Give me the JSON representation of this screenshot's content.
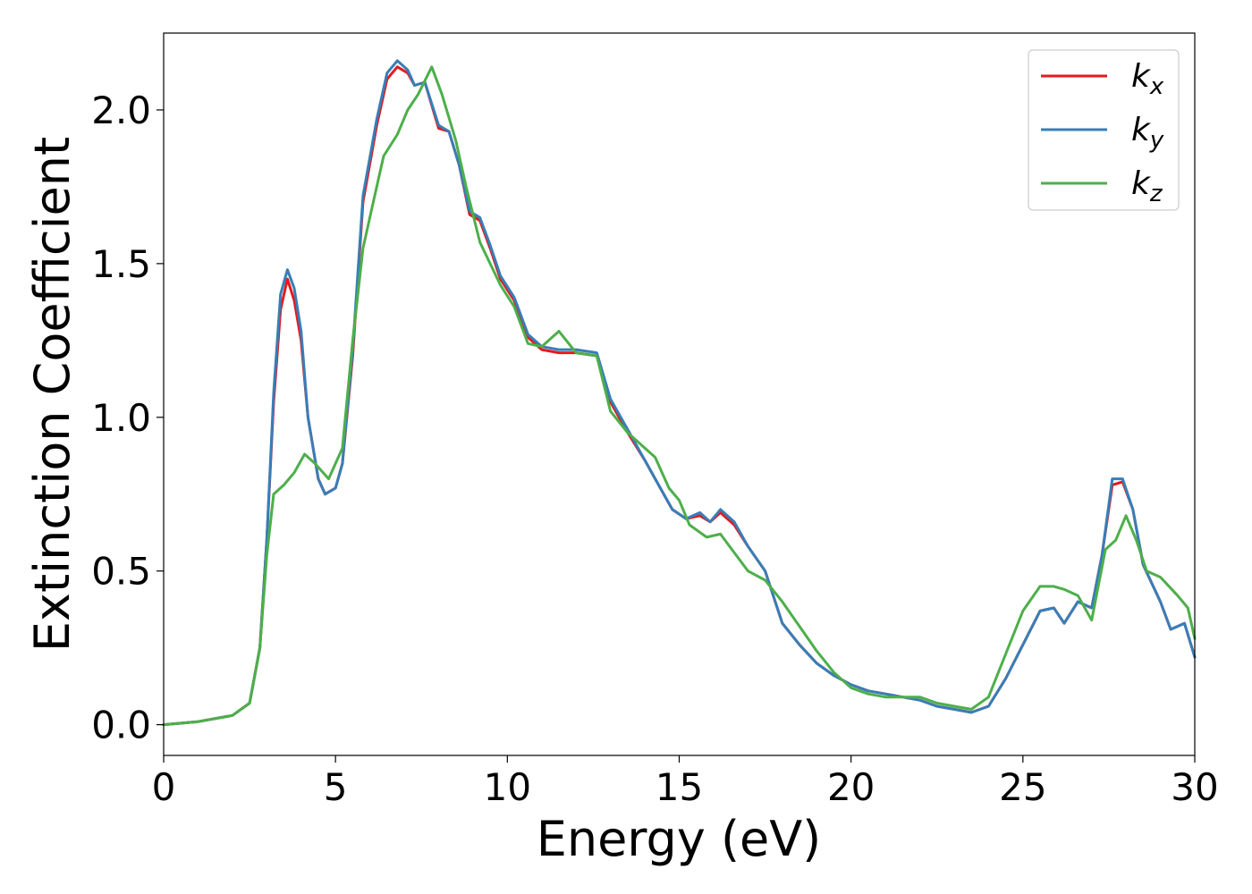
{
  "chart_data": {
    "type": "line",
    "title": "",
    "xlabel": "Energy (eV)",
    "ylabel": "Extinction Coefficient",
    "xlim": [
      0,
      30
    ],
    "ylim": [
      -0.1,
      2.25
    ],
    "xticks": [
      0,
      5,
      10,
      15,
      20,
      25,
      30
    ],
    "xtick_labels": [
      "0",
      "5",
      "10",
      "15",
      "20",
      "25",
      "30"
    ],
    "yticks": [
      0.0,
      0.5,
      1.0,
      1.5,
      2.0
    ],
    "ytick_labels": [
      "0.0",
      "0.5",
      "1.0",
      "1.5",
      "2.0"
    ],
    "grid": false,
    "legend": {
      "position": "top-right"
    },
    "series": [
      {
        "name": "k",
        "sub": "x",
        "color": "#e41a1c",
        "points": [
          [
            0,
            0
          ],
          [
            1,
            0.01
          ],
          [
            2,
            0.03
          ],
          [
            2.5,
            0.07
          ],
          [
            2.8,
            0.25
          ],
          [
            3.0,
            0.6
          ],
          [
            3.2,
            1.05
          ],
          [
            3.4,
            1.35
          ],
          [
            3.6,
            1.45
          ],
          [
            3.8,
            1.38
          ],
          [
            4.0,
            1.25
          ],
          [
            4.2,
            1.0
          ],
          [
            4.5,
            0.8
          ],
          [
            4.7,
            0.75
          ],
          [
            5.0,
            0.77
          ],
          [
            5.2,
            0.85
          ],
          [
            5.5,
            1.2
          ],
          [
            5.8,
            1.7
          ],
          [
            6.2,
            1.95
          ],
          [
            6.5,
            2.1
          ],
          [
            6.8,
            2.14
          ],
          [
            7.1,
            2.12
          ],
          [
            7.3,
            2.08
          ],
          [
            7.6,
            2.09
          ],
          [
            8.0,
            1.94
          ],
          [
            8.3,
            1.93
          ],
          [
            8.6,
            1.82
          ],
          [
            8.9,
            1.66
          ],
          [
            9.2,
            1.64
          ],
          [
            9.5,
            1.55
          ],
          [
            9.8,
            1.45
          ],
          [
            10.2,
            1.38
          ],
          [
            10.6,
            1.26
          ],
          [
            11.0,
            1.22
          ],
          [
            11.5,
            1.21
          ],
          [
            12.0,
            1.21
          ],
          [
            12.6,
            1.2
          ],
          [
            13.0,
            1.05
          ],
          [
            13.5,
            0.95
          ],
          [
            14.0,
            0.86
          ],
          [
            14.4,
            0.78
          ],
          [
            14.8,
            0.7
          ],
          [
            15.2,
            0.67
          ],
          [
            15.6,
            0.68
          ],
          [
            15.9,
            0.66
          ],
          [
            16.2,
            0.69
          ],
          [
            16.6,
            0.65
          ],
          [
            17.0,
            0.58
          ],
          [
            17.5,
            0.5
          ],
          [
            18.0,
            0.33
          ],
          [
            18.5,
            0.26
          ],
          [
            19.0,
            0.2
          ],
          [
            19.5,
            0.16
          ],
          [
            20.0,
            0.13
          ],
          [
            20.5,
            0.11
          ],
          [
            21.0,
            0.1
          ],
          [
            21.5,
            0.09
          ],
          [
            22.0,
            0.08
          ],
          [
            22.5,
            0.06
          ],
          [
            23.0,
            0.05
          ],
          [
            23.5,
            0.04
          ],
          [
            24.0,
            0.06
          ],
          [
            24.5,
            0.15
          ],
          [
            25.0,
            0.26
          ],
          [
            25.5,
            0.37
          ],
          [
            25.9,
            0.38
          ],
          [
            26.2,
            0.33
          ],
          [
            26.6,
            0.4
          ],
          [
            27.0,
            0.38
          ],
          [
            27.3,
            0.55
          ],
          [
            27.6,
            0.78
          ],
          [
            27.9,
            0.79
          ],
          [
            28.2,
            0.7
          ],
          [
            28.5,
            0.52
          ],
          [
            29.0,
            0.4
          ],
          [
            29.3,
            0.31
          ],
          [
            29.7,
            0.33
          ],
          [
            30.0,
            0.22
          ]
        ]
      },
      {
        "name": "k",
        "sub": "y",
        "color": "#377eb8",
        "points": [
          [
            0,
            0
          ],
          [
            1,
            0.01
          ],
          [
            2,
            0.03
          ],
          [
            2.5,
            0.07
          ],
          [
            2.8,
            0.25
          ],
          [
            3.0,
            0.6
          ],
          [
            3.2,
            1.08
          ],
          [
            3.4,
            1.4
          ],
          [
            3.6,
            1.48
          ],
          [
            3.8,
            1.42
          ],
          [
            4.0,
            1.28
          ],
          [
            4.2,
            1.0
          ],
          [
            4.5,
            0.8
          ],
          [
            4.7,
            0.75
          ],
          [
            5.0,
            0.77
          ],
          [
            5.2,
            0.85
          ],
          [
            5.5,
            1.22
          ],
          [
            5.8,
            1.72
          ],
          [
            6.2,
            1.97
          ],
          [
            6.5,
            2.12
          ],
          [
            6.8,
            2.16
          ],
          [
            7.1,
            2.13
          ],
          [
            7.3,
            2.08
          ],
          [
            7.6,
            2.09
          ],
          [
            8.0,
            1.95
          ],
          [
            8.3,
            1.93
          ],
          [
            8.6,
            1.82
          ],
          [
            8.9,
            1.67
          ],
          [
            9.2,
            1.65
          ],
          [
            9.5,
            1.56
          ],
          [
            9.8,
            1.46
          ],
          [
            10.2,
            1.39
          ],
          [
            10.6,
            1.27
          ],
          [
            11.0,
            1.23
          ],
          [
            11.5,
            1.22
          ],
          [
            12.0,
            1.22
          ],
          [
            12.6,
            1.21
          ],
          [
            13.0,
            1.06
          ],
          [
            13.5,
            0.96
          ],
          [
            14.0,
            0.86
          ],
          [
            14.4,
            0.78
          ],
          [
            14.8,
            0.7
          ],
          [
            15.2,
            0.67
          ],
          [
            15.6,
            0.69
          ],
          [
            15.9,
            0.66
          ],
          [
            16.2,
            0.7
          ],
          [
            16.6,
            0.66
          ],
          [
            17.0,
            0.58
          ],
          [
            17.5,
            0.5
          ],
          [
            18.0,
            0.33
          ],
          [
            18.5,
            0.26
          ],
          [
            19.0,
            0.2
          ],
          [
            19.5,
            0.16
          ],
          [
            20.0,
            0.13
          ],
          [
            20.5,
            0.11
          ],
          [
            21.0,
            0.1
          ],
          [
            21.5,
            0.09
          ],
          [
            22.0,
            0.08
          ],
          [
            22.5,
            0.06
          ],
          [
            23.0,
            0.05
          ],
          [
            23.5,
            0.04
          ],
          [
            24.0,
            0.06
          ],
          [
            24.5,
            0.15
          ],
          [
            25.0,
            0.26
          ],
          [
            25.5,
            0.37
          ],
          [
            25.9,
            0.38
          ],
          [
            26.2,
            0.33
          ],
          [
            26.6,
            0.4
          ],
          [
            27.0,
            0.38
          ],
          [
            27.3,
            0.55
          ],
          [
            27.6,
            0.8
          ],
          [
            27.9,
            0.8
          ],
          [
            28.2,
            0.7
          ],
          [
            28.5,
            0.52
          ],
          [
            29.0,
            0.4
          ],
          [
            29.3,
            0.31
          ],
          [
            29.7,
            0.33
          ],
          [
            30.0,
            0.22
          ]
        ]
      },
      {
        "name": "k",
        "sub": "z",
        "color": "#4daf4a",
        "points": [
          [
            0,
            0
          ],
          [
            1,
            0.01
          ],
          [
            2,
            0.03
          ],
          [
            2.5,
            0.07
          ],
          [
            2.8,
            0.25
          ],
          [
            3.0,
            0.55
          ],
          [
            3.2,
            0.75
          ],
          [
            3.5,
            0.78
          ],
          [
            3.8,
            0.82
          ],
          [
            4.1,
            0.88
          ],
          [
            4.4,
            0.85
          ],
          [
            4.8,
            0.8
          ],
          [
            5.2,
            0.9
          ],
          [
            5.5,
            1.25
          ],
          [
            5.8,
            1.55
          ],
          [
            6.1,
            1.7
          ],
          [
            6.4,
            1.85
          ],
          [
            6.8,
            1.92
          ],
          [
            7.1,
            2.0
          ],
          [
            7.4,
            2.05
          ],
          [
            7.8,
            2.14
          ],
          [
            8.1,
            2.05
          ],
          [
            8.5,
            1.9
          ],
          [
            8.8,
            1.75
          ],
          [
            9.2,
            1.57
          ],
          [
            9.5,
            1.5
          ],
          [
            9.8,
            1.43
          ],
          [
            10.2,
            1.36
          ],
          [
            10.6,
            1.24
          ],
          [
            11.0,
            1.23
          ],
          [
            11.5,
            1.28
          ],
          [
            12.0,
            1.21
          ],
          [
            12.6,
            1.2
          ],
          [
            13.0,
            1.02
          ],
          [
            13.5,
            0.95
          ],
          [
            14.0,
            0.9
          ],
          [
            14.3,
            0.87
          ],
          [
            14.7,
            0.77
          ],
          [
            15.0,
            0.73
          ],
          [
            15.3,
            0.65
          ],
          [
            15.8,
            0.61
          ],
          [
            16.2,
            0.62
          ],
          [
            16.6,
            0.56
          ],
          [
            17.0,
            0.5
          ],
          [
            17.5,
            0.47
          ],
          [
            18.0,
            0.4
          ],
          [
            18.5,
            0.32
          ],
          [
            19.0,
            0.24
          ],
          [
            19.5,
            0.17
          ],
          [
            20.0,
            0.12
          ],
          [
            20.5,
            0.1
          ],
          [
            21.0,
            0.09
          ],
          [
            21.5,
            0.09
          ],
          [
            22.0,
            0.09
          ],
          [
            22.5,
            0.07
          ],
          [
            23.0,
            0.06
          ],
          [
            23.5,
            0.05
          ],
          [
            24.0,
            0.09
          ],
          [
            24.5,
            0.23
          ],
          [
            25.0,
            0.37
          ],
          [
            25.5,
            0.45
          ],
          [
            25.9,
            0.45
          ],
          [
            26.2,
            0.44
          ],
          [
            26.6,
            0.42
          ],
          [
            27.0,
            0.34
          ],
          [
            27.4,
            0.57
          ],
          [
            27.7,
            0.6
          ],
          [
            28.0,
            0.68
          ],
          [
            28.3,
            0.6
          ],
          [
            28.6,
            0.5
          ],
          [
            29.0,
            0.48
          ],
          [
            29.5,
            0.42
          ],
          [
            29.8,
            0.38
          ],
          [
            30.0,
            0.28
          ]
        ]
      }
    ]
  }
}
